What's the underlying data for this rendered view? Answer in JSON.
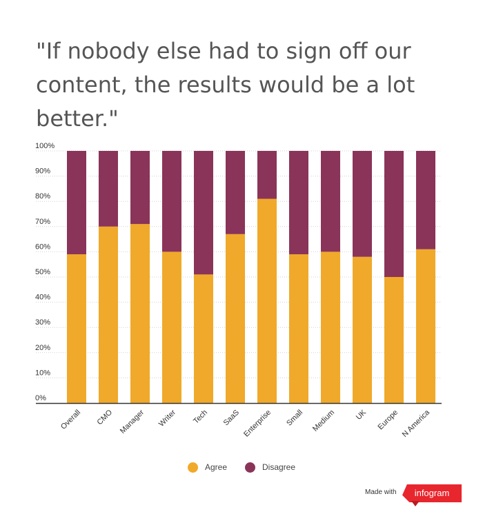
{
  "title": "\"If nobody else had to sign off our content, the results would be a lot better.\"",
  "chart_data": {
    "type": "bar",
    "stacked": true,
    "percent_axis": true,
    "categories": [
      "Overall",
      "CMO",
      "Manager",
      "Writer",
      "Tech",
      "SaaS",
      "Enterprise",
      "Small",
      "Medium",
      "UK",
      "Europe",
      "N America"
    ],
    "series": [
      {
        "name": "Agree",
        "color": "#f0a92a",
        "values": [
          59,
          70,
          71,
          60,
          51,
          67,
          81,
          59,
          60,
          58,
          50,
          61
        ]
      },
      {
        "name": "Disagree",
        "color": "#8a3459",
        "values": [
          41,
          30,
          29,
          40,
          49,
          33,
          19,
          41,
          40,
          42,
          50,
          39
        ]
      }
    ],
    "ylim": [
      0,
      100
    ],
    "yticks": [
      "0%",
      "10%",
      "20%",
      "30%",
      "40%",
      "50%",
      "60%",
      "70%",
      "80%",
      "90%",
      "100%"
    ],
    "grid": "dashed horizontal",
    "legend_position": "bottom"
  },
  "legend": {
    "agree": "Agree",
    "disagree": "Disagree"
  },
  "footer": {
    "made_with": "Made with",
    "brand": "infogram"
  }
}
